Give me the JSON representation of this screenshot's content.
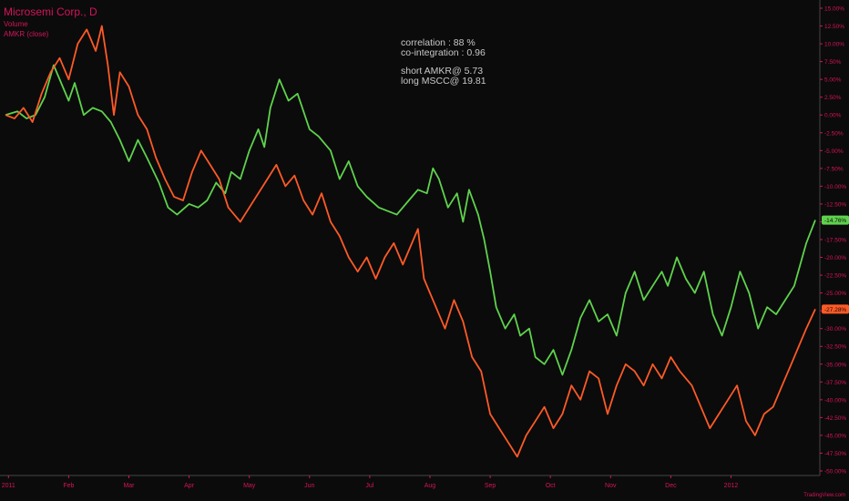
{
  "header": {
    "title": "Microsemi Corp., D",
    "line1": "Volume",
    "line2": "AMKR (close)"
  },
  "annotations": {
    "correlation": "correlation : 88 %",
    "cointegration": "co-integration : 0.96",
    "short": "short  AMKR@ 5.73",
    "long": "long MSCC@ 19.81"
  },
  "watermark": "TradingView.com",
  "colors": {
    "background": "#0b0b0b",
    "msc": "#5fd24d",
    "amkr": "#ff5a26",
    "text": "#d4145a",
    "axis": "#d4145a"
  },
  "chart_data": {
    "type": "line",
    "grid": false,
    "x_ticks": [
      "2011",
      "Feb",
      "Mar",
      "Apr",
      "May",
      "Jun",
      "Jul",
      "Aug",
      "Sep",
      "Oct",
      "Nov",
      "Dec",
      "2012"
    ],
    "y_ticks": [
      "15.00%",
      "12.50%",
      "10.00%",
      "7.50%",
      "5.00%",
      "2.50%",
      "0.00%",
      "-2.50%",
      "-5.00%",
      "-7.50%",
      "-10.00%",
      "-12.50%",
      "-15.00%",
      "-17.50%",
      "-20.00%",
      "-22.50%",
      "-25.00%",
      "-27.50%",
      "-30.00%",
      "-32.50%",
      "-35.00%",
      "-37.50%",
      "-40.00%",
      "-42.50%",
      "-45.00%",
      "-47.50%",
      "-50.00%"
    ],
    "ylim": [
      -51,
      16
    ],
    "xlim": [
      0,
      13.45
    ],
    "series": [
      {
        "name": "Microsemi Corp.",
        "color": "#5fd24d",
        "last_label": "-14.76%",
        "points": [
          [
            0,
            0
          ],
          [
            0.2,
            0.5
          ],
          [
            0.35,
            -0.5
          ],
          [
            0.5,
            0
          ],
          [
            0.65,
            2.5
          ],
          [
            0.8,
            7
          ],
          [
            0.95,
            4
          ],
          [
            1.05,
            2
          ],
          [
            1.15,
            4.5
          ],
          [
            1.3,
            0
          ],
          [
            1.45,
            1
          ],
          [
            1.6,
            0.5
          ],
          [
            1.75,
            -1
          ],
          [
            1.9,
            -3.5
          ],
          [
            2.05,
            -6.5
          ],
          [
            2.2,
            -3.5
          ],
          [
            2.35,
            -6
          ],
          [
            2.55,
            -9.5
          ],
          [
            2.7,
            -13
          ],
          [
            2.85,
            -14
          ],
          [
            3.05,
            -12.5
          ],
          [
            3.2,
            -13
          ],
          [
            3.35,
            -12
          ],
          [
            3.5,
            -9.5
          ],
          [
            3.65,
            -11
          ],
          [
            3.75,
            -8
          ],
          [
            3.9,
            -9
          ],
          [
            4.05,
            -5
          ],
          [
            4.2,
            -2
          ],
          [
            4.3,
            -4.5
          ],
          [
            4.4,
            1
          ],
          [
            4.55,
            5
          ],
          [
            4.7,
            2
          ],
          [
            4.85,
            3
          ],
          [
            5.05,
            -2
          ],
          [
            5.2,
            -3
          ],
          [
            5.4,
            -5
          ],
          [
            5.55,
            -9
          ],
          [
            5.7,
            -6.5
          ],
          [
            5.85,
            -10
          ],
          [
            6.0,
            -11.5
          ],
          [
            6.2,
            -13
          ],
          [
            6.35,
            -13.5
          ],
          [
            6.5,
            -14
          ],
          [
            6.7,
            -12
          ],
          [
            6.85,
            -10.5
          ],
          [
            7.0,
            -11
          ],
          [
            7.1,
            -7.5
          ],
          [
            7.2,
            -9
          ],
          [
            7.35,
            -13
          ],
          [
            7.5,
            -11
          ],
          [
            7.6,
            -15
          ],
          [
            7.7,
            -10.5
          ],
          [
            7.85,
            -14
          ],
          [
            7.95,
            -17.5
          ],
          [
            8.05,
            -22
          ],
          [
            8.15,
            -27
          ],
          [
            8.3,
            -30
          ],
          [
            8.45,
            -28
          ],
          [
            8.55,
            -31
          ],
          [
            8.7,
            -30
          ],
          [
            8.8,
            -34
          ],
          [
            8.95,
            -35
          ],
          [
            9.1,
            -33
          ],
          [
            9.25,
            -36.5
          ],
          [
            9.4,
            -33
          ],
          [
            9.55,
            -28.5
          ],
          [
            9.7,
            -26
          ],
          [
            9.85,
            -29
          ],
          [
            10.0,
            -28
          ],
          [
            10.15,
            -31
          ],
          [
            10.3,
            -25
          ],
          [
            10.45,
            -22
          ],
          [
            10.6,
            -26
          ],
          [
            10.75,
            -24
          ],
          [
            10.9,
            -22
          ],
          [
            11.0,
            -24
          ],
          [
            11.15,
            -20
          ],
          [
            11.3,
            -23
          ],
          [
            11.45,
            -25
          ],
          [
            11.6,
            -22
          ],
          [
            11.75,
            -28
          ],
          [
            11.9,
            -31
          ],
          [
            12.05,
            -27
          ],
          [
            12.2,
            -22
          ],
          [
            12.35,
            -25
          ],
          [
            12.5,
            -30
          ],
          [
            12.65,
            -27
          ],
          [
            12.8,
            -28
          ],
          [
            12.95,
            -26
          ],
          [
            13.1,
            -24
          ],
          [
            13.2,
            -21
          ],
          [
            13.3,
            -18
          ],
          [
            13.45,
            -14.76
          ]
        ]
      },
      {
        "name": "AMKR (close)",
        "color": "#ff5a26",
        "last_label": "-27.28%",
        "points": [
          [
            0,
            0
          ],
          [
            0.15,
            -0.5
          ],
          [
            0.3,
            1
          ],
          [
            0.45,
            -1
          ],
          [
            0.6,
            3
          ],
          [
            0.75,
            6
          ],
          [
            0.9,
            8
          ],
          [
            1.05,
            5
          ],
          [
            1.2,
            10
          ],
          [
            1.35,
            12
          ],
          [
            1.5,
            9
          ],
          [
            1.6,
            12.5
          ],
          [
            1.7,
            7
          ],
          [
            1.8,
            0
          ],
          [
            1.9,
            6
          ],
          [
            2.05,
            4
          ],
          [
            2.2,
            0
          ],
          [
            2.35,
            -2
          ],
          [
            2.5,
            -6
          ],
          [
            2.65,
            -9
          ],
          [
            2.8,
            -11.5
          ],
          [
            2.95,
            -12
          ],
          [
            3.1,
            -8
          ],
          [
            3.25,
            -5
          ],
          [
            3.4,
            -7
          ],
          [
            3.55,
            -9
          ],
          [
            3.7,
            -13
          ],
          [
            3.9,
            -15
          ],
          [
            4.05,
            -13
          ],
          [
            4.2,
            -11
          ],
          [
            4.35,
            -9
          ],
          [
            4.5,
            -7
          ],
          [
            4.65,
            -10
          ],
          [
            4.8,
            -8.5
          ],
          [
            4.95,
            -12
          ],
          [
            5.1,
            -14
          ],
          [
            5.25,
            -11
          ],
          [
            5.4,
            -15
          ],
          [
            5.55,
            -17
          ],
          [
            5.7,
            -20
          ],
          [
            5.85,
            -22
          ],
          [
            6.0,
            -20
          ],
          [
            6.15,
            -23
          ],
          [
            6.3,
            -20
          ],
          [
            6.45,
            -18
          ],
          [
            6.6,
            -21
          ],
          [
            6.75,
            -18
          ],
          [
            6.85,
            -16
          ],
          [
            6.95,
            -23
          ],
          [
            7.05,
            -25
          ],
          [
            7.15,
            -27
          ],
          [
            7.3,
            -30
          ],
          [
            7.45,
            -26
          ],
          [
            7.6,
            -29
          ],
          [
            7.75,
            -34
          ],
          [
            7.9,
            -36
          ],
          [
            8.05,
            -42
          ],
          [
            8.2,
            -44
          ],
          [
            8.35,
            -46
          ],
          [
            8.5,
            -48
          ],
          [
            8.65,
            -45
          ],
          [
            8.8,
            -43
          ],
          [
            8.95,
            -41
          ],
          [
            9.1,
            -44
          ],
          [
            9.25,
            -42
          ],
          [
            9.4,
            -38
          ],
          [
            9.55,
            -40
          ],
          [
            9.7,
            -36
          ],
          [
            9.85,
            -37
          ],
          [
            10.0,
            -42
          ],
          [
            10.15,
            -38
          ],
          [
            10.3,
            -35
          ],
          [
            10.45,
            -36
          ],
          [
            10.6,
            -38
          ],
          [
            10.75,
            -35
          ],
          [
            10.9,
            -37
          ],
          [
            11.05,
            -34
          ],
          [
            11.2,
            -36
          ],
          [
            11.4,
            -38
          ],
          [
            11.55,
            -41
          ],
          [
            11.7,
            -44
          ],
          [
            11.85,
            -42
          ],
          [
            12.0,
            -40
          ],
          [
            12.15,
            -38
          ],
          [
            12.3,
            -43
          ],
          [
            12.45,
            -45
          ],
          [
            12.6,
            -42
          ],
          [
            12.75,
            -41
          ],
          [
            12.9,
            -38
          ],
          [
            13.05,
            -35
          ],
          [
            13.2,
            -32
          ],
          [
            13.3,
            -30
          ],
          [
            13.45,
            -27.28
          ]
        ]
      }
    ]
  }
}
